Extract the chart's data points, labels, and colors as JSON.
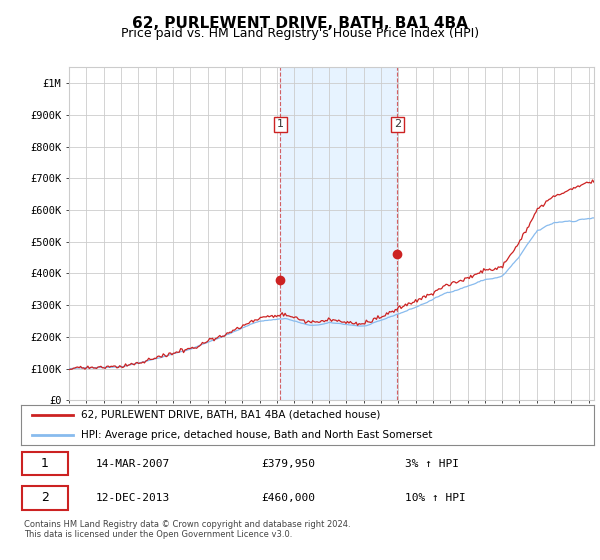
{
  "title": "62, PURLEWENT DRIVE, BATH, BA1 4BA",
  "subtitle": "Price paid vs. HM Land Registry's House Price Index (HPI)",
  "title_fontsize": 11,
  "subtitle_fontsize": 9,
  "ylabel_ticks": [
    "£0",
    "£100K",
    "£200K",
    "£300K",
    "£400K",
    "£500K",
    "£600K",
    "£700K",
    "£800K",
    "£900K",
    "£1M"
  ],
  "ytick_values": [
    0,
    100000,
    200000,
    300000,
    400000,
    500000,
    600000,
    700000,
    800000,
    900000,
    1000000
  ],
  "ylim": [
    0,
    1050000
  ],
  "bg_color": "#ffffff",
  "plot_bg_color": "#ffffff",
  "grid_color": "#cccccc",
  "hspan_color": "#ddeeff",
  "legend_label_red": "62, PURLEWENT DRIVE, BATH, BA1 4BA (detached house)",
  "legend_label_blue": "HPI: Average price, detached house, Bath and North East Somerset",
  "transaction1_date": "14-MAR-2007",
  "transaction1_price": "£379,950",
  "transaction1_hpi": "3% ↑ HPI",
  "transaction2_date": "12-DEC-2013",
  "transaction2_price": "£460,000",
  "transaction2_hpi": "10% ↑ HPI",
  "footer_text": "Contains HM Land Registry data © Crown copyright and database right 2024.\nThis data is licensed under the Open Government Licence v3.0.",
  "vline1_x": 2007.2,
  "vline2_x": 2013.95,
  "hpi_line_color": "#88bbee",
  "price_line_color": "#cc2222",
  "xlim_left": 1995,
  "xlim_right": 2025.3
}
